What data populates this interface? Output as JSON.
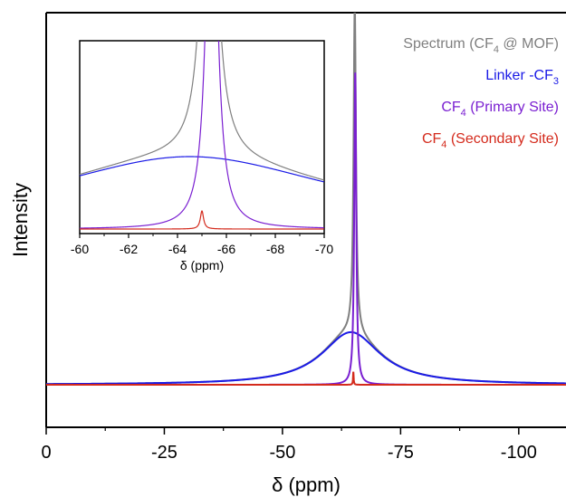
{
  "chart_data": {
    "type": "line",
    "title": "",
    "xlabel": "δ (ppm)",
    "ylabel": "Intensity",
    "xlim": [
      0,
      -110
    ],
    "x_reversed": true,
    "xticks": [
      0,
      -25,
      -50,
      -75,
      -100
    ],
    "xtick_labels": [
      "0",
      "-25",
      "-50",
      "-75",
      "-100"
    ],
    "y_ticks_shown": false,
    "grid": false,
    "legend_placement": "top-right",
    "series": [
      {
        "name": "Spectrum (CF4 @ MOF)",
        "legend_main": "Spectrum  (CF",
        "legend_sub": "4",
        "legend_tail": " @ MOF)",
        "color": "#7f7f7f",
        "center": -65.3,
        "peak_height": 1.0,
        "broad_center": -64.5,
        "broad_height": 0.16,
        "broad_width": 7.5
      },
      {
        "name": "Linker -CF3",
        "legend_main": "Linker -CF",
        "legend_sub": "3",
        "legend_tail": "",
        "color": "#1a1ae6",
        "center": -64.5,
        "peak_height": 0.16,
        "width": 7.5
      },
      {
        "name": "CF4 (Primary Site)",
        "legend_main": "CF",
        "legend_sub": "4",
        "legend_tail": " (Primary Site)",
        "color": "#7a1fd1",
        "center": -65.4,
        "peak_height": 0.95,
        "width": 0.25
      },
      {
        "name": "CF4 (Secondary Site)",
        "legend_main": "CF",
        "legend_sub": "4",
        "legend_tail": " (Secondary Site)",
        "color": "#d42a1c",
        "center": -65.0,
        "peak_height": 0.04,
        "width": 0.08
      }
    ],
    "inset": {
      "xlabel": "δ (ppm)",
      "xlim": [
        -60,
        -70
      ],
      "xticks": [
        -60,
        -62,
        -64,
        -66,
        -68,
        -70
      ],
      "xtick_labels": [
        "-60",
        "-62",
        "-64",
        "-66",
        "-68",
        "-70"
      ]
    }
  }
}
